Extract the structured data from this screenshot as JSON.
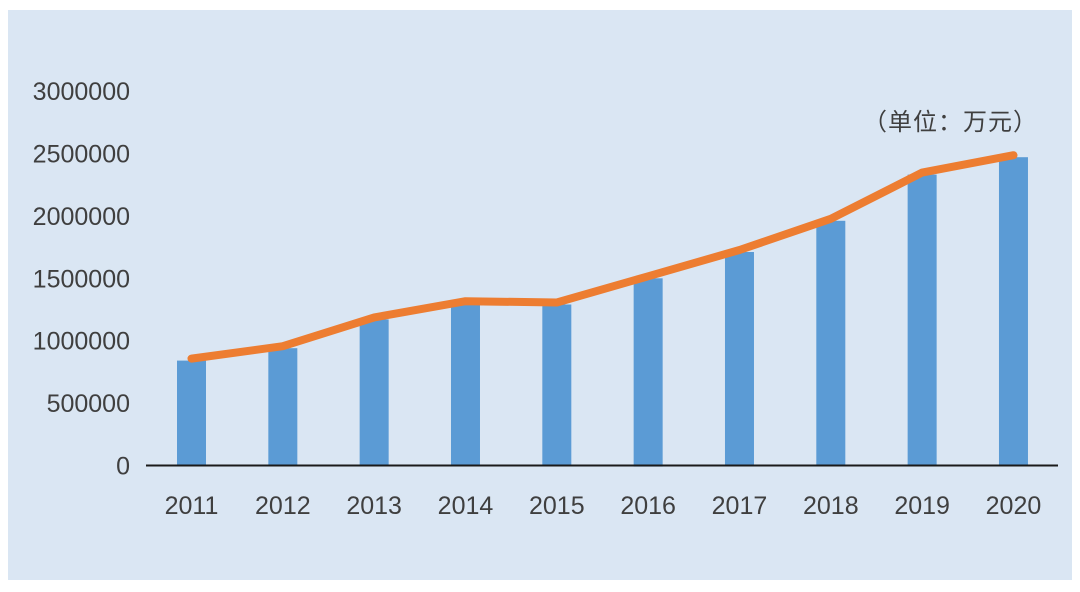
{
  "colors": {
    "panel_bg": "#dae6f3",
    "bar": "#5b9bd5",
    "line": "#ed7d31",
    "axis": "#1a1a1a",
    "text": "#3f3f3f"
  },
  "chart_data": {
    "type": "bar",
    "title": "",
    "unit_label": "（单位：万元）",
    "categories": [
      "2011",
      "2012",
      "2013",
      "2014",
      "2015",
      "2016",
      "2017",
      "2018",
      "2019",
      "2020"
    ],
    "series": [
      {
        "name": "annual-value-bars",
        "type": "bar",
        "values": [
          840000,
          940000,
          1170000,
          1300000,
          1290000,
          1500000,
          1710000,
          1960000,
          2330000,
          2470000
        ]
      },
      {
        "name": "annual-value-trend-line",
        "type": "line",
        "values": [
          840000,
          940000,
          1170000,
          1300000,
          1290000,
          1500000,
          1710000,
          1960000,
          2330000,
          2470000
        ]
      }
    ],
    "xlabel": "",
    "ylabel": "",
    "ylim": [
      0,
      3000000
    ],
    "yticks": [
      0,
      500000,
      1000000,
      1500000,
      2000000,
      2500000,
      3000000
    ],
    "grid": false,
    "legend": false
  }
}
